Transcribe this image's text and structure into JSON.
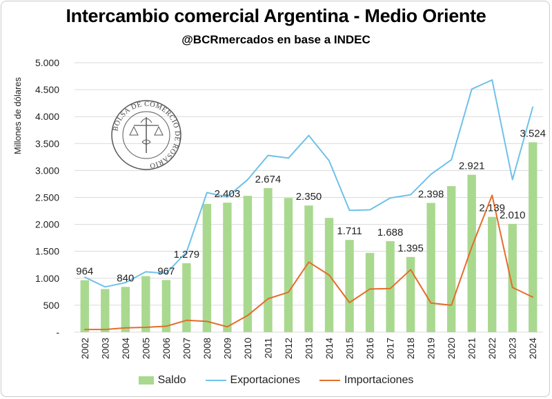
{
  "chart_data": {
    "type": "bar",
    "title": "Intercambio comercial Argentina - Medio Oriente",
    "subtitle": "@BCRmercados en base a INDEC",
    "ylabel": "Millones de dólares",
    "xlabel": "",
    "ylim": [
      0,
      5000
    ],
    "yticks": [
      "-",
      "500",
      "1.000",
      "1.500",
      "2.000",
      "2.500",
      "3.000",
      "3.500",
      "4.000",
      "4.500",
      "5.000"
    ],
    "ytick_values": [
      0,
      500,
      1000,
      1500,
      2000,
      2500,
      3000,
      3500,
      4000,
      4500,
      5000
    ],
    "categories": [
      "2002",
      "2003",
      "2004",
      "2005",
      "2006",
      "2007",
      "2008",
      "2009",
      "2010",
      "2011",
      "2012",
      "2013",
      "2014",
      "2015",
      "2016",
      "2017",
      "2018",
      "2019",
      "2020",
      "2021",
      "2022",
      "2023",
      "2024"
    ],
    "series": [
      {
        "name": "Saldo",
        "kind": "bar",
        "color": "#a9d98f",
        "values": [
          964,
          800,
          840,
          1040,
          967,
          1279,
          2380,
          2403,
          2530,
          2674,
          2490,
          2350,
          2120,
          1711,
          1470,
          1688,
          1395,
          2398,
          2710,
          2921,
          2139,
          2010,
          3524
        ]
      },
      {
        "name": "Exportaciones",
        "kind": "line",
        "color": "#6ec1e8",
        "values": [
          1020,
          840,
          920,
          1120,
          1090,
          1490,
          2590,
          2510,
          2830,
          3280,
          3230,
          3650,
          3180,
          2260,
          2270,
          2490,
          2550,
          2930,
          3200,
          4510,
          4680,
          2830,
          4180
        ]
      },
      {
        "name": "Importaciones",
        "kind": "line",
        "color": "#e46c2a",
        "values": [
          50,
          50,
          80,
          90,
          110,
          220,
          200,
          100,
          310,
          620,
          740,
          1300,
          1060,
          550,
          800,
          810,
          1160,
          540,
          500,
          1580,
          2540,
          830,
          650
        ]
      }
    ],
    "data_labels": [
      {
        "index": 0,
        "text": "964"
      },
      {
        "index": 2,
        "text": "840"
      },
      {
        "index": 4,
        "text": "967"
      },
      {
        "index": 5,
        "text": "1.279"
      },
      {
        "index": 7,
        "text": "2.403"
      },
      {
        "index": 9,
        "text": "2.674"
      },
      {
        "index": 11,
        "text": "2.350"
      },
      {
        "index": 13,
        "text": "1.711"
      },
      {
        "index": 15,
        "text": "1.688"
      },
      {
        "index": 16,
        "text": "1.395"
      },
      {
        "index": 17,
        "text": "2.398"
      },
      {
        "index": 19,
        "text": "2.921"
      },
      {
        "index": 20,
        "text": "2.139"
      },
      {
        "index": 21,
        "text": "2.010"
      },
      {
        "index": 22,
        "text": "3.524"
      }
    ],
    "grid": true,
    "legend_position": "bottom",
    "watermark": "BOLSA DE COMERCIO DE ROSARIO"
  }
}
